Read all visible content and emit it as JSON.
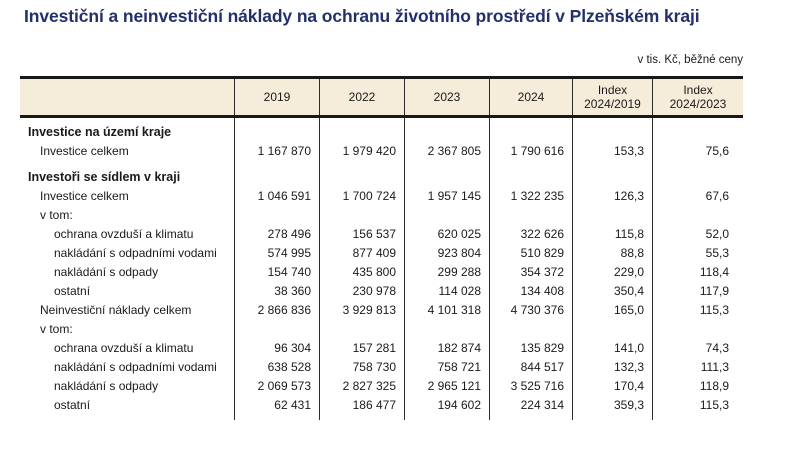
{
  "title": "Investiční a neinvestiční náklady na ochranu životního prostředí v Plzeňském kraji",
  "unit_note": "v tis. Kč, běžné ceny",
  "colors": {
    "title_text": "#23306B",
    "header_background": "#F5EDDA",
    "border": "#181818",
    "body_text": "#1A1A1A"
  },
  "table": {
    "columns": [
      {
        "line1": "2019",
        "line2": ""
      },
      {
        "line1": "2022",
        "line2": ""
      },
      {
        "line1": "2023",
        "line2": ""
      },
      {
        "line1": "2024",
        "line2": ""
      },
      {
        "line1": "Index",
        "line2": "2024/2019"
      },
      {
        "line1": "Index",
        "line2": "2024/2023"
      }
    ],
    "rows": [
      {
        "label": "Investice na území kraje",
        "style": "section",
        "gap_before": true,
        "values": [
          "",
          "",
          "",
          "",
          "",
          ""
        ]
      },
      {
        "label": "Investice celkem",
        "style": "item",
        "values": [
          "1 167 870",
          "1 979 420",
          "2 367 805",
          "1 790 616",
          "153,3",
          "75,6"
        ]
      },
      {
        "label": "Investoři se sídlem v kraji",
        "style": "section",
        "gap_before": true,
        "values": [
          "",
          "",
          "",
          "",
          "",
          ""
        ]
      },
      {
        "label": "Investice celkem",
        "style": "item",
        "values": [
          "1 046 591",
          "1 700 724",
          "1 957 145",
          "1 322 235",
          "126,3",
          "67,6"
        ]
      },
      {
        "label": "v tom:",
        "style": "item",
        "values": [
          "",
          "",
          "",
          "",
          "",
          ""
        ]
      },
      {
        "label": "ochrana ovzduší a klimatu",
        "style": "subitem",
        "values": [
          "278 496",
          "156 537",
          "620 025",
          "322 626",
          "115,8",
          "52,0"
        ]
      },
      {
        "label": "nakládání s odpadními vodami",
        "style": "subitem",
        "values": [
          "574 995",
          "877 409",
          "923 804",
          "510 829",
          "88,8",
          "55,3"
        ]
      },
      {
        "label": "nakládání s odpady",
        "style": "subitem",
        "values": [
          "154 740",
          "435 800",
          "299 288",
          "354 372",
          "229,0",
          "118,4"
        ]
      },
      {
        "label": "ostatní",
        "style": "subitem",
        "values": [
          "38 360",
          "230 978",
          "114 028",
          "134 408",
          "350,4",
          "117,9"
        ]
      },
      {
        "label": "Neinvestiční náklady celkem",
        "style": "item",
        "values": [
          "2 866 836",
          "3 929 813",
          "4 101 318",
          "4 730 376",
          "165,0",
          "115,3"
        ]
      },
      {
        "label": "v tom:",
        "style": "item",
        "values": [
          "",
          "",
          "",
          "",
          "",
          ""
        ]
      },
      {
        "label": "ochrana ovzduší a klimatu",
        "style": "subitem",
        "values": [
          "96 304",
          "157 281",
          "182 874",
          "135 829",
          "141,0",
          "74,3"
        ]
      },
      {
        "label": "nakládání s odpadními vodami",
        "style": "subitem",
        "values": [
          "638 528",
          "758 730",
          "758 721",
          "844 517",
          "132,3",
          "111,3"
        ]
      },
      {
        "label": "nakládání s odpady",
        "style": "subitem",
        "values": [
          "2 069 573",
          "2 827 325",
          "2 965 121",
          "3 525 716",
          "170,4",
          "118,9"
        ]
      },
      {
        "label": "ostatní",
        "style": "subitem",
        "values": [
          "62 431",
          "186 477",
          "194 602",
          "224 314",
          "359,3",
          "115,3"
        ]
      }
    ]
  }
}
